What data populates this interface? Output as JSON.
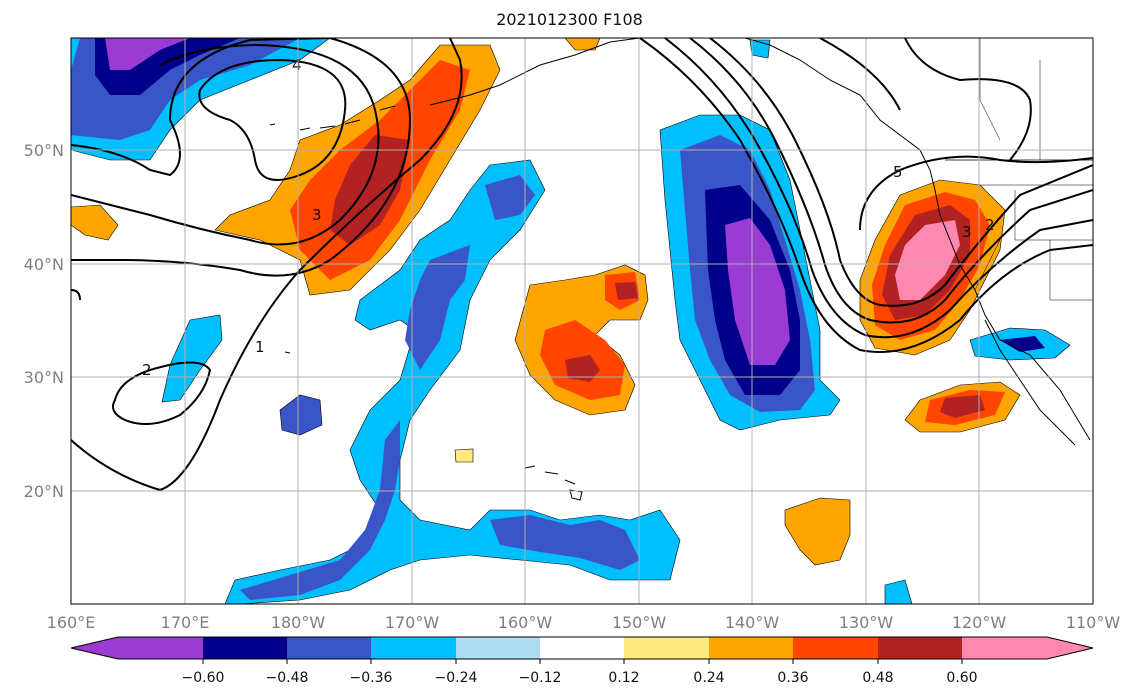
{
  "title": "2021012300 F108",
  "map": {
    "lon_ticks": [
      "160°E",
      "170°E",
      "180°W",
      "170°W",
      "160°W",
      "150°W",
      "140°W",
      "130°W",
      "120°W",
      "110°W"
    ],
    "lat_ticks": [
      "20°N",
      "30°N",
      "40°N",
      "50°N"
    ],
    "contour_labels": [
      "4",
      "3",
      "2",
      "1",
      "5",
      "3",
      "2"
    ]
  },
  "colorbar": {
    "labels": [
      "−0.60",
      "−0.48",
      "−0.36",
      "−0.24",
      "−0.12",
      "0.12",
      "0.24",
      "0.36",
      "0.48",
      "0.60"
    ],
    "colors": [
      "#9a3bd3",
      "#00008b",
      "#3a55c8",
      "#00bfff",
      "#aedcf5",
      "#ffffff",
      "#ffea80",
      "#ffa500",
      "#ff4500",
      "#b22222",
      "#ff88b0"
    ]
  },
  "palette": {
    "purple": "#9a3bd3",
    "navy": "#00008b",
    "blue": "#3a55c8",
    "cyan": "#00bfff",
    "lightblue": "#aedcf5",
    "yellow": "#ffea80",
    "orange": "#ffa500",
    "redorange": "#ff4500",
    "darkred": "#b22222",
    "pink": "#ff88b0"
  }
}
